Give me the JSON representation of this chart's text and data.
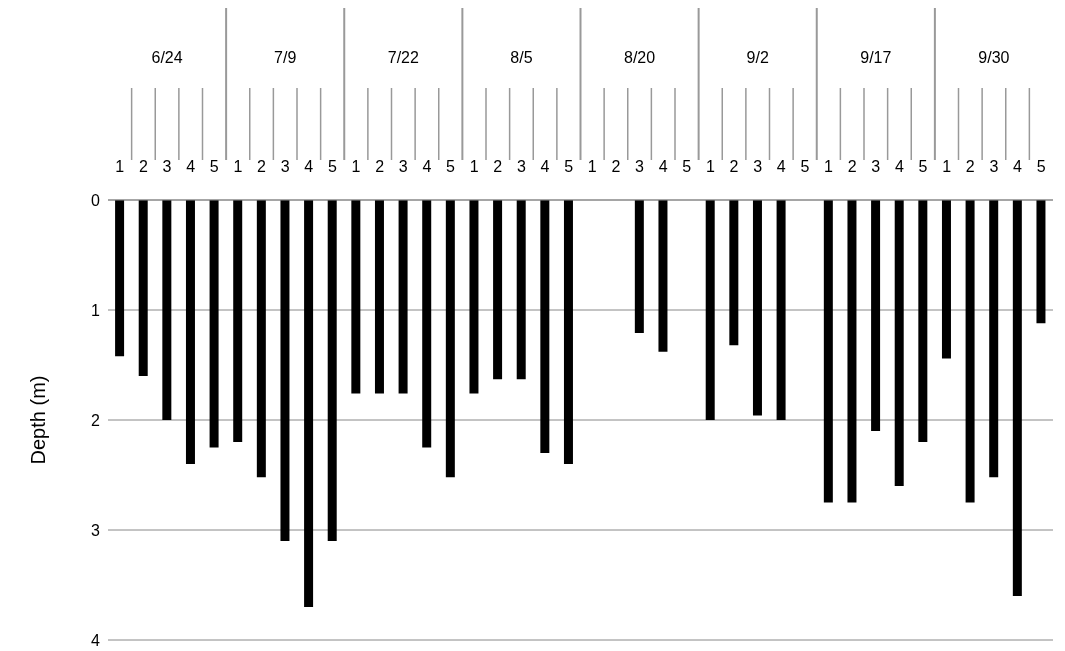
{
  "chart_data": {
    "type": "bar",
    "ylabel": "Depth (m)",
    "categories": [
      "1",
      "2",
      "3",
      "4",
      "5",
      "1",
      "2",
      "3",
      "4",
      "5",
      "1",
      "2",
      "3",
      "4",
      "5",
      "1",
      "2",
      "3",
      "4",
      "5",
      "1",
      "2",
      "3",
      "4",
      "5",
      "1",
      "2",
      "3",
      "4",
      "5",
      "1",
      "2",
      "3",
      "4",
      "5",
      "1",
      "2",
      "3",
      "4",
      "5"
    ],
    "annotations": [
      "6/24",
      "7/9",
      "7/22",
      "8/5",
      "8/20",
      "9/2",
      "9/17",
      "9/30"
    ],
    "values": [
      1.42,
      1.6,
      2.0,
      2.4,
      2.25,
      2.2,
      2.52,
      3.1,
      3.7,
      3.1,
      1.76,
      1.76,
      1.76,
      2.25,
      2.52,
      1.76,
      1.63,
      1.63,
      2.3,
      2.4,
      null,
      null,
      1.21,
      1.38,
      null,
      2.0,
      1.32,
      1.96,
      2.0,
      null,
      2.75,
      2.75,
      2.1,
      2.6,
      2.2,
      1.44,
      2.75,
      2.52,
      3.6,
      1.12
    ],
    "color": "#000000",
    "ylim": [
      4,
      0
    ],
    "yticks": [
      0,
      1,
      2,
      3,
      4
    ],
    "grid": "y"
  }
}
